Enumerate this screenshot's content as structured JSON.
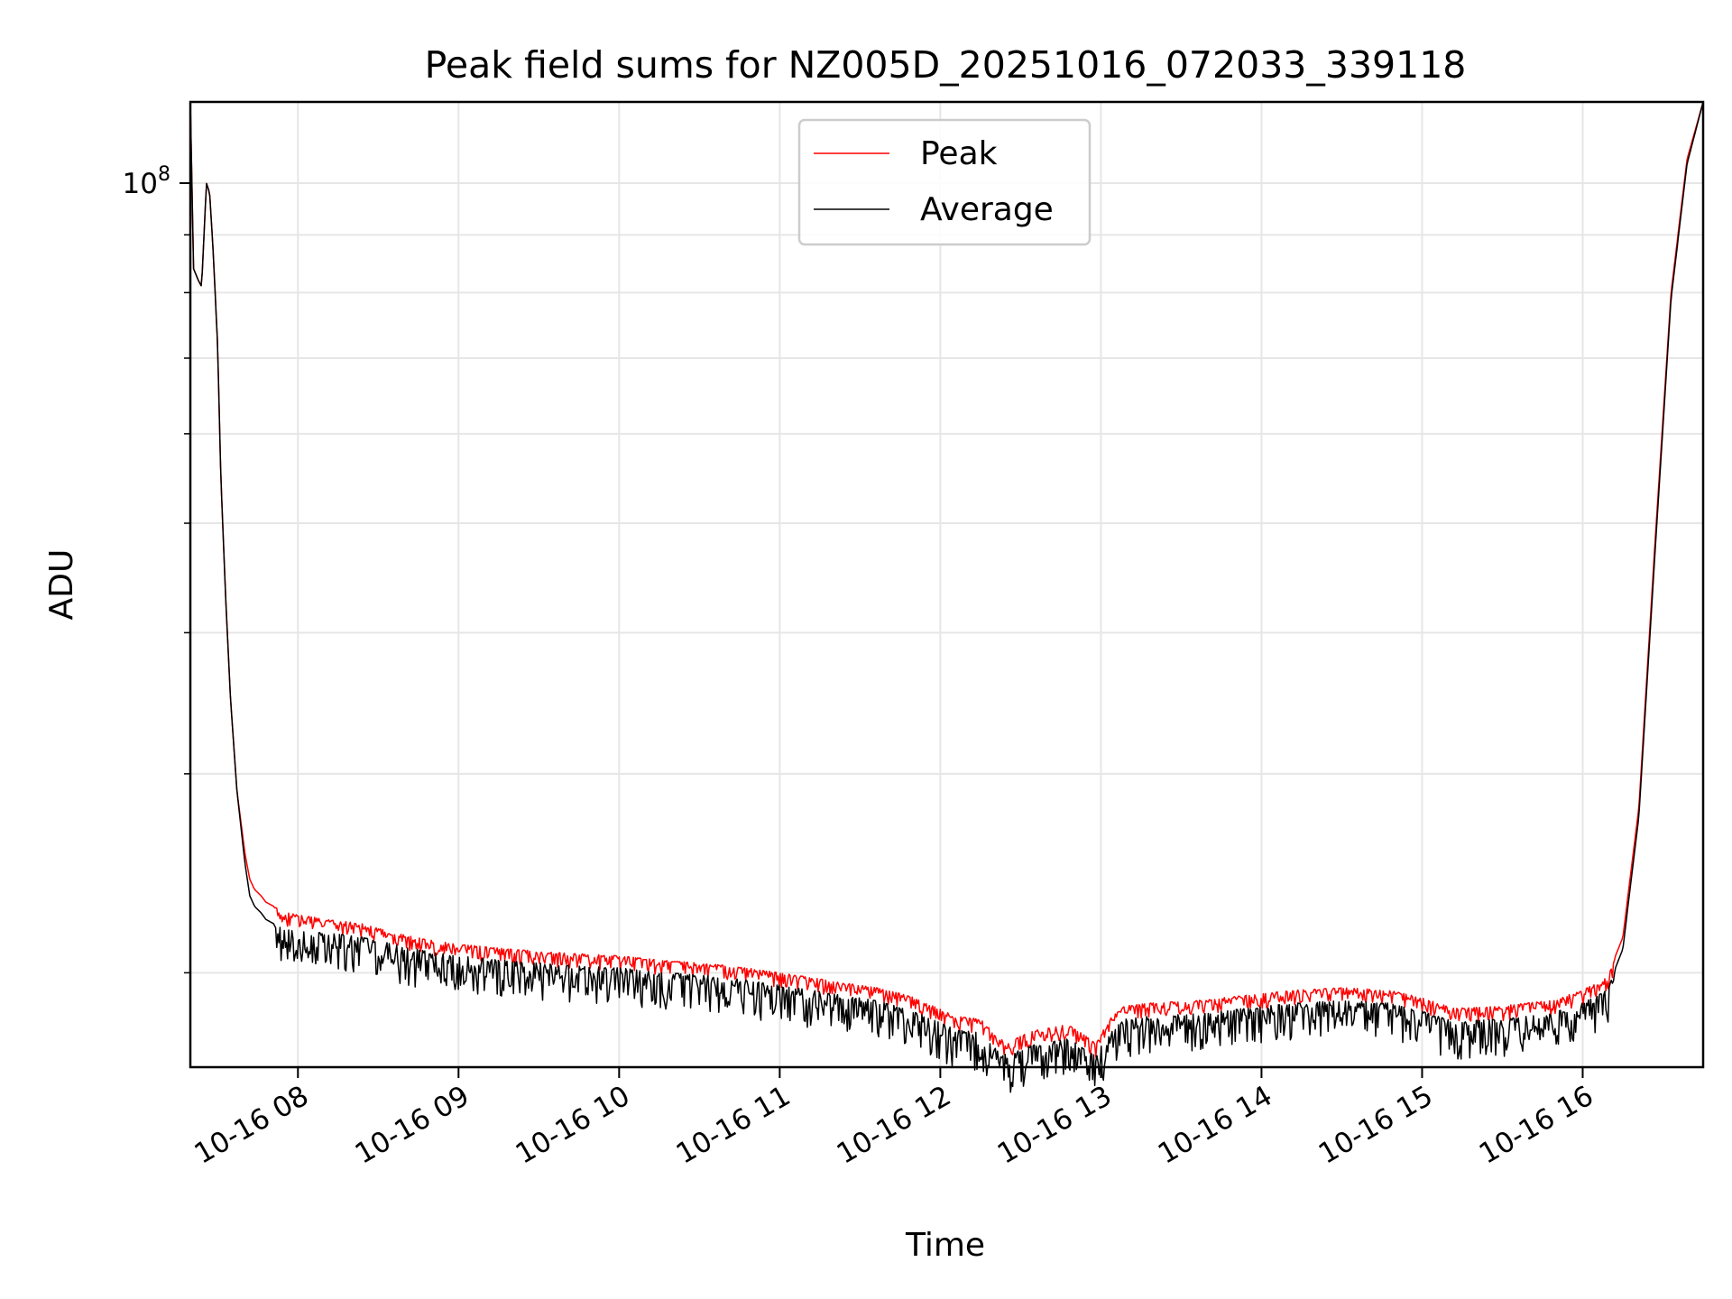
{
  "chart_data": {
    "type": "line",
    "title": "Peak field sums for NZ005D_20251016_072033_339118",
    "xlabel": "Time",
    "ylabel": "ADU",
    "yscale": "log",
    "x_unit": "hours since 10-16 00:00",
    "xlim": [
      7.33,
      16.75
    ],
    "ylim": [
      16500000,
      118000000
    ],
    "xticks": [
      8,
      9,
      10,
      11,
      12,
      13,
      14,
      15,
      16
    ],
    "xtick_labels": [
      "10-16 08",
      "10-16 09",
      "10-16 10",
      "10-16 11",
      "10-16 12",
      "10-16 13",
      "10-16 14",
      "10-16 15",
      "10-16 16"
    ],
    "yticks": [
      100000000
    ],
    "ytick_base": "10",
    "ytick_exp": "8",
    "grid": true,
    "legend_position": "upper center",
    "series": [
      {
        "name": "Peak",
        "color": "#ff0000",
        "x": [
          7.33,
          7.35,
          7.38,
          7.4,
          7.43,
          7.45,
          7.47,
          7.5,
          7.52,
          7.55,
          7.58,
          7.62,
          7.67,
          7.7,
          7.73,
          7.77,
          7.8,
          7.85,
          7.9,
          8.0,
          8.2,
          8.4,
          8.6,
          8.8,
          9.0,
          9.3,
          9.6,
          10.0,
          10.3,
          10.6,
          10.8,
          11.0,
          11.3,
          11.6,
          11.8,
          11.95,
          12.1,
          12.25,
          12.35,
          12.42,
          12.5,
          12.6,
          12.7,
          12.8,
          12.9,
          12.97,
          13.05,
          13.15,
          13.3,
          13.6,
          13.9,
          14.2,
          14.5,
          14.8,
          15.0,
          15.2,
          15.5,
          15.8,
          16.0,
          16.15,
          16.25,
          16.35,
          16.45,
          16.55,
          16.65,
          16.75
        ],
        "values": [
          118000000,
          84000000,
          82000000,
          81000000,
          100000000,
          98000000,
          88000000,
          72000000,
          55000000,
          43000000,
          35000000,
          29000000,
          25500000,
          24200000,
          23700000,
          23400000,
          23100000,
          22900000,
          22700000,
          22500000,
          22300000,
          22100000,
          21700000,
          21400000,
          21200000,
          21000000,
          20850000,
          20700000,
          20500000,
          20350000,
          20200000,
          20000000,
          19700000,
          19400000,
          19100000,
          18700000,
          18300000,
          18200000,
          17600000,
          17300000,
          17600000,
          17800000,
          17900000,
          18000000,
          17600000,
          17300000,
          18200000,
          18700000,
          18800000,
          18900000,
          19100000,
          19300000,
          19400000,
          19300000,
          19000000,
          18600000,
          18700000,
          18900000,
          19300000,
          19800000,
          21500000,
          28000000,
          48000000,
          80000000,
          105000000,
          118000000
        ]
      },
      {
        "name": "Average",
        "color": "#000000",
        "x": [
          7.33,
          7.35,
          7.38,
          7.4,
          7.43,
          7.45,
          7.47,
          7.5,
          7.52,
          7.55,
          7.58,
          7.62,
          7.67,
          7.7,
          7.73,
          7.77,
          7.8,
          7.85,
          7.9,
          8.0,
          8.2,
          8.4,
          8.6,
          8.8,
          9.0,
          9.3,
          9.6,
          10.0,
          10.3,
          10.6,
          10.8,
          11.0,
          11.3,
          11.6,
          11.8,
          11.95,
          12.1,
          12.25,
          12.35,
          12.42,
          12.5,
          12.6,
          12.7,
          12.8,
          12.9,
          12.97,
          13.05,
          13.15,
          13.3,
          13.6,
          13.9,
          14.2,
          14.5,
          14.8,
          15.0,
          15.2,
          15.5,
          15.8,
          16.0,
          16.15,
          16.25,
          16.35,
          16.45,
          16.55,
          16.65,
          16.75
        ],
        "values": [
          118000000,
          84000000,
          82000000,
          81000000,
          100000000,
          98000000,
          88000000,
          72000000,
          55000000,
          43000000,
          35000000,
          29000000,
          25000000,
          23400000,
          22900000,
          22600000,
          22300000,
          22100000,
          21900000,
          21800000,
          21700000,
          21500000,
          21200000,
          20900000,
          20700000,
          20500000,
          20350000,
          20200000,
          20000000,
          19850000,
          19700000,
          19500000,
          19200000,
          18900000,
          18600000,
          18200000,
          17800000,
          17700000,
          17100000,
          16900000,
          17100000,
          17300000,
          17400000,
          17500000,
          17100000,
          16900000,
          17700000,
          18200000,
          18300000,
          18400000,
          18600000,
          18800000,
          18900000,
          18800000,
          18500000,
          18100000,
          18200000,
          18400000,
          18800000,
          19300000,
          21000000,
          27500000,
          47000000,
          79000000,
          104000000,
          118000000
        ]
      }
    ]
  }
}
